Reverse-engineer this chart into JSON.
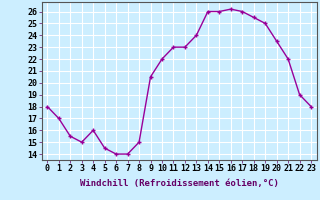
{
  "x": [
    0,
    1,
    2,
    3,
    4,
    5,
    6,
    7,
    8,
    9,
    10,
    11,
    12,
    13,
    14,
    15,
    16,
    17,
    18,
    19,
    20,
    21,
    22,
    23
  ],
  "y": [
    18,
    17,
    15.5,
    15,
    16,
    14.5,
    14,
    14,
    15,
    20.5,
    22,
    23,
    23,
    24,
    26,
    26,
    26.2,
    26,
    25.5,
    25,
    23.5,
    22,
    19,
    18
  ],
  "line_color": "#990099",
  "marker": "+",
  "marker_size": 3.5,
  "bg_color": "#cceeff",
  "grid_color": "#ffffff",
  "xlabel": "Windchill (Refroidissement éolien,°C)",
  "xlabel_fontsize": 6.5,
  "xtick_labels": [
    "0",
    "1",
    "2",
    "3",
    "4",
    "5",
    "6",
    "7",
    "8",
    "9",
    "10",
    "11",
    "12",
    "13",
    "14",
    "15",
    "16",
    "17",
    "18",
    "19",
    "20",
    "21",
    "22",
    "23"
  ],
  "ylim": [
    13.5,
    26.8
  ],
  "xlim": [
    -0.5,
    23.5
  ],
  "yticks": [
    14,
    15,
    16,
    17,
    18,
    19,
    20,
    21,
    22,
    23,
    24,
    25,
    26
  ],
  "tick_fontsize": 6,
  "linewidth": 1.0
}
